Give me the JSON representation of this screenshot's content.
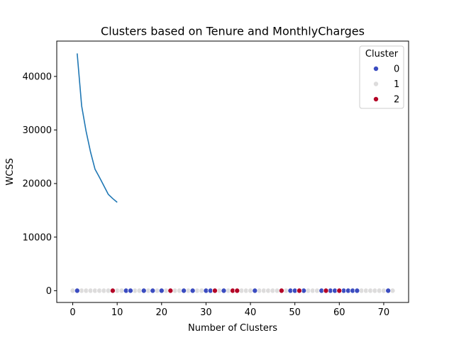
{
  "chart_data": {
    "type": "line+scatter",
    "title": "Clusters based on Tenure and MonthlyCharges",
    "xlabel": "Number of Clusters",
    "ylabel": "WCSS",
    "xlim": [
      -3.6,
      75.6
    ],
    "ylim": [
      -2200,
      46600
    ],
    "xticks": [
      0,
      10,
      20,
      30,
      40,
      50,
      60,
      70
    ],
    "yticks": [
      0,
      10000,
      20000,
      30000,
      40000
    ],
    "grid": false,
    "legend": {
      "title": "Cluster",
      "placement": "top-right",
      "entries": [
        {
          "label": "0",
          "color": "#3b4cc0"
        },
        {
          "label": "1",
          "color": "#dddcdc"
        },
        {
          "label": "2",
          "color": "#b40426"
        }
      ]
    },
    "line_series": {
      "color": "#1f77b4",
      "x": [
        1,
        2,
        3,
        4,
        5,
        6,
        7,
        8,
        9,
        10
      ],
      "y": [
        44300,
        34500,
        29800,
        25900,
        22700,
        21200,
        19600,
        18000,
        17200,
        16500
      ]
    },
    "scatter_series": [
      {
        "cluster": "1",
        "x": [
          0,
          2,
          3,
          4,
          5,
          6,
          7,
          8,
          10,
          11,
          14,
          15,
          17,
          19,
          20,
          21,
          23,
          24,
          26,
          28,
          29,
          30,
          32,
          33,
          35,
          37,
          38,
          39,
          40,
          42,
          43,
          44,
          45,
          46,
          48,
          53,
          54,
          55,
          56,
          57,
          59,
          61,
          62,
          65,
          66,
          67,
          68,
          69,
          70,
          72
        ],
        "y": [
          0,
          0,
          0,
          0,
          0,
          0,
          0,
          0,
          0,
          0,
          0,
          0,
          0,
          0,
          0,
          0,
          0,
          0,
          0,
          0,
          0,
          0,
          0,
          0,
          0,
          0,
          0,
          0,
          0,
          0,
          0,
          0,
          0,
          0,
          0,
          0,
          0,
          0,
          0,
          0,
          0,
          0,
          0,
          0,
          0,
          0,
          0,
          0,
          0,
          0
        ]
      },
      {
        "cluster": "0",
        "x": [
          1,
          12,
          13,
          16,
          18,
          20,
          25,
          27,
          30,
          31,
          34,
          41,
          49,
          50,
          51,
          52,
          56,
          58,
          59,
          61,
          62,
          63,
          64,
          71
        ],
        "y": [
          0,
          0,
          0,
          0,
          0,
          0,
          0,
          0,
          0,
          0,
          0,
          0,
          0,
          0,
          0,
          0,
          0,
          0,
          0,
          0,
          0,
          0,
          0,
          0
        ]
      },
      {
        "cluster": "2",
        "x": [
          9,
          22,
          32,
          36,
          37,
          47,
          51,
          57,
          60
        ],
        "y": [
          0,
          0,
          0,
          0,
          0,
          0,
          0,
          0,
          0
        ]
      }
    ]
  }
}
